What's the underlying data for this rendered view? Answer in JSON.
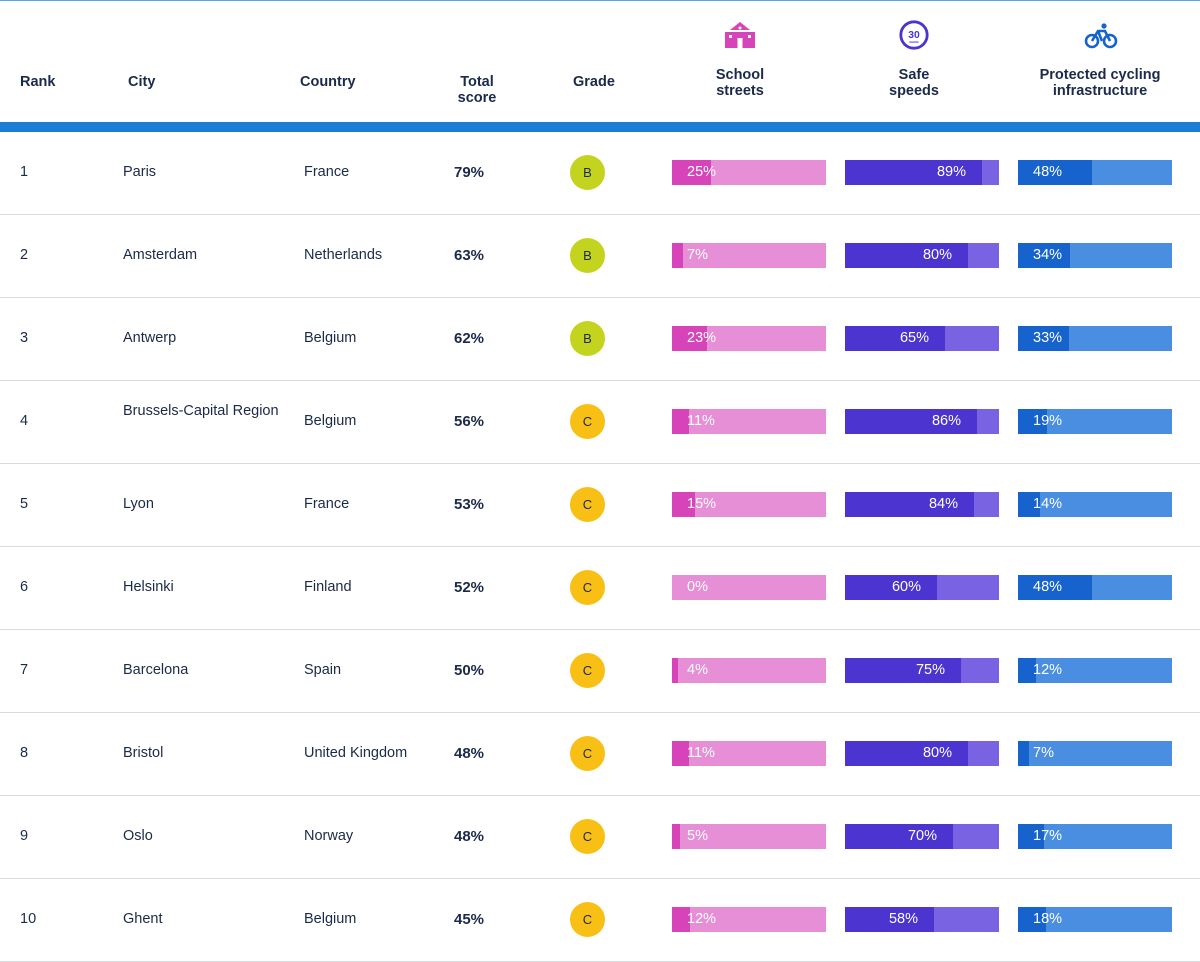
{
  "header": {
    "rank": "Rank",
    "city": "City",
    "country": "Country",
    "total_line1": "Total",
    "total_line2": "score",
    "grade": "Grade",
    "school_line1": "School",
    "school_line2": "streets",
    "speed_line1": "Safe",
    "speed_line2": "speeds",
    "cycle_line1": "Protected cycling",
    "cycle_line2": "infrastructure",
    "speed_icon_text": "30"
  },
  "icons": {
    "school": "school-building-icon",
    "speed": "speed-limit-30-icon",
    "cycle": "bicycle-icon"
  },
  "colors": {
    "accent_rule": "#1a7fd4",
    "grade_B": "#c4d41e",
    "grade_C": "#f8c015",
    "school_fill": "#d744b9",
    "school_track": "#e68fd6",
    "speed_fill": "#4b34cf",
    "speed_track": "#7a63e3",
    "cycle_fill": "#1663cd",
    "cycle_track": "#4a8ee2",
    "school_icon": "#d744b9",
    "speed_icon": "#4b34cf",
    "cycle_icon": "#1663cd"
  },
  "rows": [
    {
      "rank": "1",
      "city": "Paris",
      "country": "France",
      "score": "79%",
      "grade": "B",
      "school": 25,
      "school_label": "25%",
      "speed": 89,
      "speed_label": "89%",
      "cycle": 48,
      "cycle_label": "48%"
    },
    {
      "rank": "2",
      "city": "Amsterdam",
      "country": "Netherlands",
      "score": "63%",
      "grade": "B",
      "school": 7,
      "school_label": "7%",
      "speed": 80,
      "speed_label": "80%",
      "cycle": 34,
      "cycle_label": "34%"
    },
    {
      "rank": "3",
      "city": "Antwerp",
      "country": "Belgium",
      "score": "62%",
      "grade": "B",
      "school": 23,
      "school_label": "23%",
      "speed": 65,
      "speed_label": "65%",
      "cycle": 33,
      "cycle_label": "33%"
    },
    {
      "rank": "4",
      "city": "Brussels-Capital Region",
      "country": "Belgium",
      "score": "56%",
      "grade": "C",
      "school": 11,
      "school_label": "11%",
      "speed": 86,
      "speed_label": "86%",
      "cycle": 19,
      "cycle_label": "19%"
    },
    {
      "rank": "5",
      "city": "Lyon",
      "country": "France",
      "score": "53%",
      "grade": "C",
      "school": 15,
      "school_label": "15%",
      "speed": 84,
      "speed_label": "84%",
      "cycle": 14,
      "cycle_label": "14%"
    },
    {
      "rank": "6",
      "city": "Helsinki",
      "country": "Finland",
      "score": "52%",
      "grade": "C",
      "school": 0,
      "school_label": "0%",
      "speed": 60,
      "speed_label": "60%",
      "cycle": 48,
      "cycle_label": "48%"
    },
    {
      "rank": "7",
      "city": "Barcelona",
      "country": "Spain",
      "score": "50%",
      "grade": "C",
      "school": 4,
      "school_label": "4%",
      "speed": 75,
      "speed_label": "75%",
      "cycle": 12,
      "cycle_label": "12%"
    },
    {
      "rank": "8",
      "city": "Bristol",
      "country": "United Kingdom",
      "score": "48%",
      "grade": "C",
      "school": 11,
      "school_label": "11%",
      "speed": 80,
      "speed_label": "80%",
      "cycle": 7,
      "cycle_label": "7%"
    },
    {
      "rank": "9",
      "city": "Oslo",
      "country": "Norway",
      "score": "48%",
      "grade": "C",
      "school": 5,
      "school_label": "5%",
      "speed": 70,
      "speed_label": "70%",
      "cycle": 17,
      "cycle_label": "17%"
    },
    {
      "rank": "10",
      "city": "Ghent",
      "country": "Belgium",
      "score": "45%",
      "grade": "C",
      "school": 12,
      "school_label": "12%",
      "speed": 58,
      "speed_label": "58%",
      "cycle": 18,
      "cycle_label": "18%"
    }
  ]
}
